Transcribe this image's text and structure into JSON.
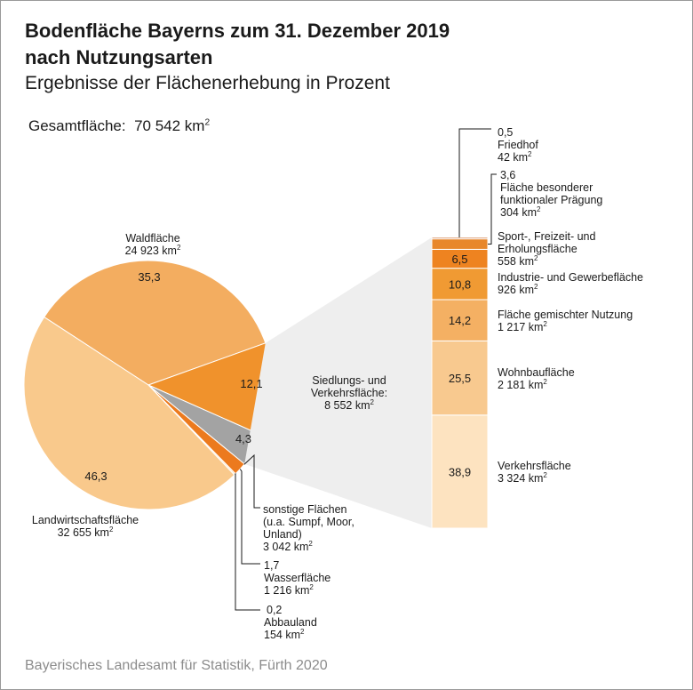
{
  "header": {
    "title_line1": "Bodenfläche Bayerns zum 31. Dezember 2019",
    "title_line2": "nach Nutzungsarten",
    "subtitle": "Ergebnisse der Flächenerhebung in Prozent",
    "total_label": "Gesamtfläche:",
    "total_value": "70 542 km",
    "total_sup": "2"
  },
  "source": "Bayerisches Landesamt für Statistik, Fürth 2020",
  "colors": {
    "wald": "#f3ad60",
    "landwirtschaft": "#f9c98c",
    "siedlung": "#f0922c",
    "sonstige": "#a3a3a3",
    "wasser": "#ec7a1e",
    "abbauland": "#fbe3bf",
    "friedhof": "#c96b2a",
    "besondere": "#e8872b",
    "sport": "#ee8320",
    "industrie": "#f09a33",
    "gemischt": "#f4b063",
    "wohnbau": "#f8c98f",
    "verkehr": "#fde3c0",
    "connector": "#eeeeee"
  },
  "chart_data": [
    {
      "type": "pie",
      "title": "Bodenfläche Bayerns zum 31. Dezember 2019 nach Nutzungsarten",
      "unit": "Prozent",
      "slices": [
        {
          "name": "Waldfläche",
          "value": 35.3,
          "value_label": "35,3",
          "area": "24 923 km",
          "label_lines": [
            "Waldfläche"
          ]
        },
        {
          "name": "Siedlungs- und Verkehrsfläche",
          "value": 12.1,
          "value_label": "12,1",
          "area": "8 552 km",
          "label_lines": [
            "Siedlungs- und",
            "Verkehrsfläche:"
          ]
        },
        {
          "name": "sonstige Flächen (u.a. Sumpf, Moor, Unland)",
          "value": 4.3,
          "value_label": "4,3",
          "area": "3 042 km",
          "label_lines": [
            "sonstige Flächen",
            "(u.a. Sumpf, Moor,",
            "Unland)"
          ]
        },
        {
          "name": "Wasserfläche",
          "value": 1.7,
          "value_label": "1,7",
          "area": "1 216 km",
          "label_lines": [
            "Wasserfläche"
          ]
        },
        {
          "name": "Abbauland",
          "value": 0.2,
          "value_label": "0,2",
          "area": "154 km",
          "label_lines": [
            "Abbauland"
          ]
        },
        {
          "name": "Landwirtschaftsfläche",
          "value": 46.3,
          "value_label": "46,3",
          "area": "32 655 km",
          "label_lines": [
            "Landwirtschaftsfläche"
          ]
        }
      ]
    },
    {
      "type": "bar",
      "stacked": true,
      "title": "Siedlungs- und Verkehrsfläche",
      "unit": "Prozent",
      "segments": [
        {
          "name": "Verkehrsfläche",
          "value": 38.9,
          "value_label": "38,9",
          "area": "3 324 km",
          "label_lines": [
            "Verkehrsfläche"
          ]
        },
        {
          "name": "Wohnbaufläche",
          "value": 25.5,
          "value_label": "25,5",
          "area": "2 181 km",
          "label_lines": [
            "Wohnbaufläche"
          ]
        },
        {
          "name": "Fläche gemischter Nutzung",
          "value": 14.2,
          "value_label": "14,2",
          "area": "1 217 km",
          "label_lines": [
            "Fläche gemischter Nutzung"
          ]
        },
        {
          "name": "Industrie- und Gewerbefläche",
          "value": 10.8,
          "value_label": "10,8",
          "area": "926 km",
          "label_lines": [
            "Industrie- und Gewerbefläche"
          ]
        },
        {
          "name": "Sport-, Freizeit- und Erholungsfläche",
          "value": 6.5,
          "value_label": "6,5",
          "area": "558 km",
          "label_lines": [
            "Sport-, Freizeit- und",
            "Erholungsfläche"
          ]
        },
        {
          "name": "Fläche besonderer funktionaler Prägung",
          "value": 3.6,
          "value_label": "3,6",
          "area": "304 km",
          "label_lines": [
            "Fläche besonderer",
            "funktionaler Prägung"
          ]
        },
        {
          "name": "Friedhof",
          "value": 0.5,
          "value_label": "0,5",
          "area": "42 km",
          "label_lines": [
            "Friedhof"
          ]
        }
      ]
    }
  ]
}
